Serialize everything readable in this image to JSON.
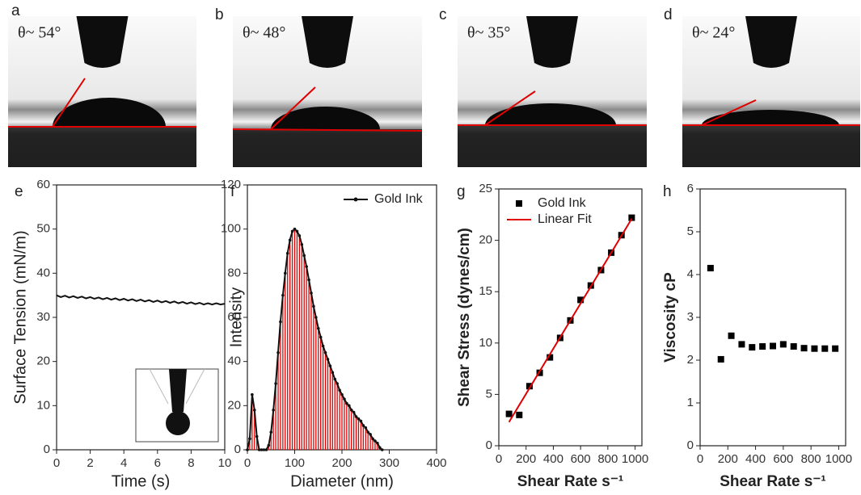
{
  "photos": [
    {
      "label": "a",
      "angle": "θ~ 54°"
    },
    {
      "label": "b",
      "angle": "θ~ 48°"
    },
    {
      "label": "c",
      "angle": "θ~ 35°"
    },
    {
      "label": "d",
      "angle": "θ~ 24°"
    }
  ],
  "chart_data": [
    {
      "type": "line",
      "label": "e",
      "x_label": "Time (s)",
      "y_label": "Surface Tension (mN/m)",
      "xlim": [
        0,
        10
      ],
      "xticks": [
        0,
        2,
        4,
        6,
        8,
        10
      ],
      "ylim": [
        0,
        60
      ],
      "yticks": [
        0,
        10,
        20,
        30,
        40,
        50,
        60
      ],
      "series": [
        {
          "color": "#111111",
          "line": true,
          "x": [
            0,
            0.25,
            0.5,
            0.75,
            1,
            1.25,
            1.5,
            1.75,
            2,
            2.25,
            2.5,
            2.75,
            3,
            3.25,
            3.5,
            3.75,
            4,
            4.25,
            4.5,
            4.75,
            5,
            5.25,
            5.5,
            5.75,
            6,
            6.25,
            6.5,
            6.75,
            7,
            7.25,
            7.5,
            7.75,
            8,
            8.25,
            8.5,
            8.75,
            9,
            9.25,
            9.5,
            9.75,
            10
          ],
          "values": [
            35.0,
            34.6,
            34.9,
            34.5,
            34.8,
            34.4,
            34.7,
            34.3,
            34.6,
            34.2,
            34.5,
            34.1,
            34.4,
            34.0,
            34.3,
            33.9,
            34.2,
            33.8,
            34.1,
            33.7,
            34.0,
            33.6,
            33.9,
            33.5,
            33.8,
            33.4,
            33.7,
            33.3,
            33.6,
            33.2,
            33.5,
            33.1,
            33.4,
            33.0,
            33.3,
            32.9,
            33.2,
            32.9,
            33.2,
            32.9,
            33.1
          ]
        }
      ]
    },
    {
      "type": "line",
      "label": "f",
      "x_label": "Diameter (nm)",
      "y_label": "Intensity",
      "xlim": [
        0,
        400
      ],
      "xticks": [
        0,
        100,
        200,
        300,
        400
      ],
      "ylim": [
        0,
        120
      ],
      "yticks": [
        0,
        20,
        40,
        60,
        80,
        100,
        120
      ],
      "legend": "upper right",
      "series": [
        {
          "name": "Gold Ink",
          "color": "#111111",
          "line": true,
          "marker": "circle",
          "drop_color": "#e00000",
          "x": [
            0,
            5,
            10,
            15,
            20,
            25,
            30,
            35,
            40,
            45,
            50,
            55,
            60,
            65,
            70,
            75,
            80,
            85,
            90,
            95,
            100,
            105,
            110,
            115,
            120,
            125,
            130,
            135,
            140,
            145,
            150,
            155,
            160,
            165,
            170,
            175,
            180,
            185,
            190,
            195,
            200,
            205,
            210,
            215,
            220,
            225,
            230,
            235,
            240,
            245,
            250,
            255,
            260,
            265,
            270,
            275,
            280,
            285
          ],
          "values": [
            0,
            5,
            25,
            18,
            6,
            0,
            0,
            0,
            0,
            2,
            8,
            18,
            30,
            44,
            58,
            70,
            80,
            89,
            95,
            99,
            100,
            99,
            97,
            93,
            88,
            83,
            77,
            71,
            65,
            60,
            55,
            51,
            47,
            44,
            41,
            38,
            35,
            32,
            30,
            27,
            25,
            23,
            21,
            20,
            18,
            17,
            15,
            14,
            13,
            11,
            10,
            8,
            7,
            5,
            4,
            3,
            1,
            0
          ]
        }
      ]
    },
    {
      "type": "scatter",
      "label": "g",
      "x_label": "Shear Rate s⁻¹",
      "y_label": "Shear Stress (dynes/cm)",
      "xlim": [
        0,
        1050
      ],
      "xticks": [
        0,
        200,
        400,
        600,
        800,
        1000
      ],
      "ylim": [
        0,
        25
      ],
      "yticks": [
        0,
        5,
        10,
        15,
        20,
        25
      ],
      "legend": "upper left",
      "series": [
        {
          "name": "Gold Ink",
          "color": "#000000",
          "marker": "square",
          "x": [
            75,
            150,
            225,
            300,
            375,
            450,
            525,
            600,
            675,
            750,
            825,
            900,
            975
          ],
          "values": [
            3.1,
            3.0,
            5.8,
            7.1,
            8.6,
            10.5,
            12.2,
            14.2,
            15.6,
            17.1,
            18.8,
            20.5,
            22.2
          ]
        },
        {
          "name": "Linear Fit",
          "color": "#e00000",
          "line": true,
          "x": [
            75,
            975
          ],
          "values": [
            2.3,
            22.1
          ]
        }
      ]
    },
    {
      "type": "scatter",
      "label": "h",
      "x_label": "Shear Rate s⁻¹",
      "y_label": "Viscosity cP",
      "xlim": [
        0,
        1050
      ],
      "xticks": [
        0,
        200,
        400,
        600,
        800,
        1000
      ],
      "ylim": [
        0,
        6
      ],
      "yticks": [
        0,
        1,
        2,
        3,
        4,
        5,
        6
      ],
      "series": [
        {
          "color": "#000000",
          "marker": "square",
          "x": [
            75,
            150,
            225,
            300,
            375,
            450,
            525,
            600,
            675,
            750,
            825,
            900,
            975
          ],
          "values": [
            4.15,
            2.02,
            2.57,
            2.37,
            2.3,
            2.32,
            2.33,
            2.37,
            2.32,
            2.28,
            2.27,
            2.27,
            2.27
          ]
        }
      ]
    }
  ]
}
